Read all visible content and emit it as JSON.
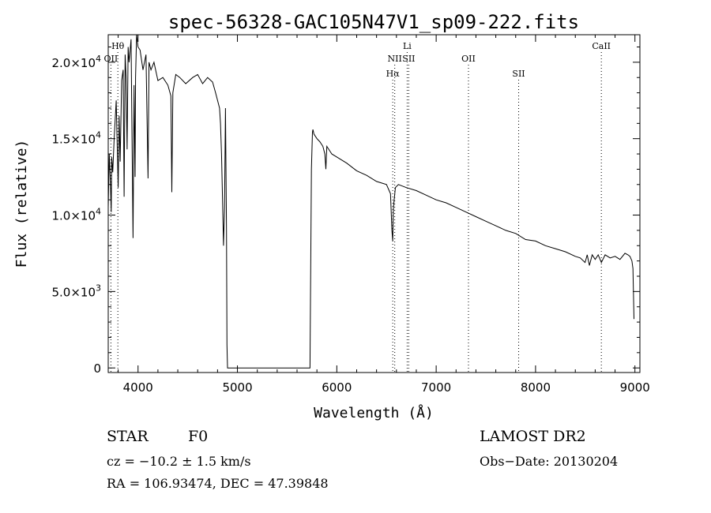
{
  "chart_data": {
    "type": "line",
    "title": "spec-56328-GAC105N47V1_sp09-222.fits",
    "xlabel": "Wavelength (Å)",
    "ylabel": "Flux (relative)",
    "xlim": [
      3700,
      9050
    ],
    "ylim": [
      -300,
      21800
    ],
    "x_ticks": [
      4000,
      5000,
      6000,
      7000,
      8000,
      9000
    ],
    "x_tick_labels": [
      "4000",
      "5000",
      "6000",
      "7000",
      "8000",
      "9000"
    ],
    "y_ticks": [
      0,
      5000,
      10000,
      15000,
      20000
    ],
    "y_tick_labels": [
      {
        "mantissa": "0",
        "exp": ""
      },
      {
        "mantissa": "5.0×10",
        "exp": "3"
      },
      {
        "mantissa": "1.0×10",
        "exp": "4"
      },
      {
        "mantissa": "1.5×10",
        "exp": "4"
      },
      {
        "mantissa": "2.0×10",
        "exp": "4"
      }
    ],
    "grid": false,
    "series": [
      {
        "x": [
          3700,
          3710,
          3720,
          3730,
          3735,
          3745,
          3760,
          3780,
          3800,
          3810,
          3820,
          3835,
          3850,
          3860,
          3870,
          3880,
          3890,
          3900,
          3910,
          3930,
          3950,
          3960,
          3970,
          3975,
          3985,
          4000,
          4020,
          4050,
          4080,
          4101,
          4110,
          4130,
          4160,
          4200,
          4250,
          4300,
          4330,
          4340,
          4350,
          4380,
          4420,
          4480,
          4550,
          4600,
          4650,
          4700,
          4750,
          4780,
          4800,
          4820,
          4830,
          4840,
          4850,
          4860,
          4870,
          4880,
          4890,
          4895,
          4900,
          4910,
          4930,
          4950,
          5000,
          5300,
          5600,
          5700,
          5730,
          5745,
          5755,
          5760,
          5770,
          5800,
          5830,
          5860,
          5880,
          5890,
          5900,
          5950,
          6000,
          6100,
          6200,
          6300,
          6400,
          6500,
          6540,
          6555,
          6563,
          6570,
          6590,
          6620,
          6700,
          6800,
          6900,
          7000,
          7100,
          7200,
          7300,
          7400,
          7500,
          7600,
          7700,
          7800,
          7900,
          8000,
          8100,
          8200,
          8300,
          8400,
          8450,
          8498,
          8520,
          8542,
          8570,
          8600,
          8630,
          8662,
          8700,
          8750,
          8800,
          8850,
          8900,
          8930,
          8950,
          8970,
          8980,
          8990
        ],
        "y": [
          10500,
          14000,
          12500,
          10200,
          13800,
          12800,
          15000,
          17500,
          11800,
          16500,
          13500,
          18800,
          19500,
          11200,
          20500,
          19000,
          14300,
          21000,
          20000,
          21500,
          8500,
          18500,
          12500,
          19000,
          21800,
          21000,
          20800,
          19500,
          20500,
          12400,
          20000,
          19500,
          20000,
          18800,
          19000,
          18500,
          17800,
          11500,
          18000,
          19200,
          19000,
          18600,
          19000,
          19200,
          18600,
          19000,
          18700,
          18000,
          17500,
          17000,
          16000,
          14000,
          11000,
          8000,
          10500,
          17000,
          9000,
          1500,
          0,
          0,
          0,
          0,
          0,
          0,
          0,
          0,
          0,
          13000,
          15400,
          15600,
          15300,
          15000,
          14800,
          14500,
          14000,
          13000,
          14500,
          14000,
          13800,
          13400,
          12900,
          12600,
          12200,
          12000,
          11400,
          9000,
          8300,
          10500,
          11800,
          12000,
          11800,
          11600,
          11300,
          11000,
          10800,
          10500,
          10200,
          9900,
          9600,
          9300,
          9000,
          8800,
          8400,
          8300,
          8000,
          7800,
          7600,
          7300,
          7200,
          6900,
          7400,
          6700,
          7400,
          7100,
          7400,
          6900,
          7400,
          7200,
          7300,
          7100,
          7500,
          7400,
          7300,
          7000,
          6500,
          3200
        ]
      }
    ],
    "spectral_lines": [
      {
        "label": "Hθ",
        "x": 3797,
        "row": 0
      },
      {
        "label": "OII",
        "x": 3727,
        "row": 1
      },
      {
        "label": "Li",
        "x": 6708,
        "row": 0
      },
      {
        "label": "NII",
        "x": 6583,
        "row": 1
      },
      {
        "label": "SII",
        "x": 6724,
        "row": 1
      },
      {
        "label": "Hα",
        "x": 6563,
        "row": 2
      },
      {
        "label": "OII",
        "x": 7325,
        "row": 1
      },
      {
        "label": "SII",
        "x": 7830,
        "row": 2
      },
      {
        "label": "CaII",
        "x": 8662,
        "row": 0
      }
    ]
  },
  "footer": {
    "object_class": "STAR",
    "subclass": "F0",
    "redshift": "cz = −10.2 ± 1.5 km/s",
    "coords": "RA = 106.93474, DEC =  47.39848",
    "survey": "LAMOST DR2",
    "obs_date": "Obs−Date: 20130204"
  }
}
